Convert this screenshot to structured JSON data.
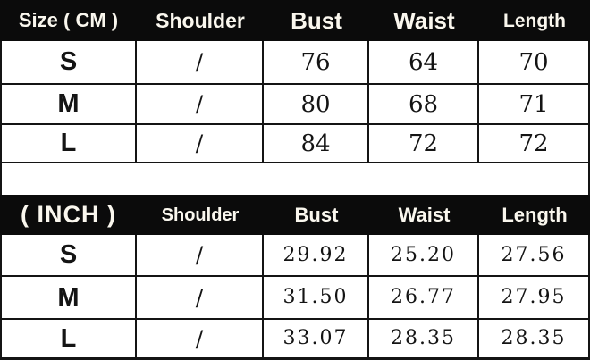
{
  "chart_data": [
    {
      "type": "table",
      "name": "size-chart-cm",
      "unit": "CM",
      "columns": [
        "Size ( CM )",
        "Shoulder",
        "Bust",
        "Waist",
        "Length"
      ],
      "rows": [
        [
          "S",
          "/",
          "76",
          "64",
          "70"
        ],
        [
          "M",
          "/",
          "80",
          "68",
          "71"
        ],
        [
          "L",
          "/",
          "84",
          "72",
          "72"
        ]
      ]
    },
    {
      "type": "table",
      "name": "size-chart-inch",
      "unit": "INCH",
      "columns": [
        "( INCH )",
        "Shoulder",
        "Bust",
        "Waist",
        "Length"
      ],
      "rows": [
        [
          "S",
          "/",
          "29.92",
          "25.20",
          "27.56"
        ],
        [
          "M",
          "/",
          "31.50",
          "26.77",
          "27.95"
        ],
        [
          "L",
          "/",
          "33.07",
          "28.35",
          "28.35"
        ]
      ]
    }
  ],
  "colors": {
    "header_bg": "#0b0b0b",
    "header_text": "#faf7ee",
    "cell_bg": "#ffffff",
    "border_color": "#141414",
    "body_text": "#141414"
  }
}
